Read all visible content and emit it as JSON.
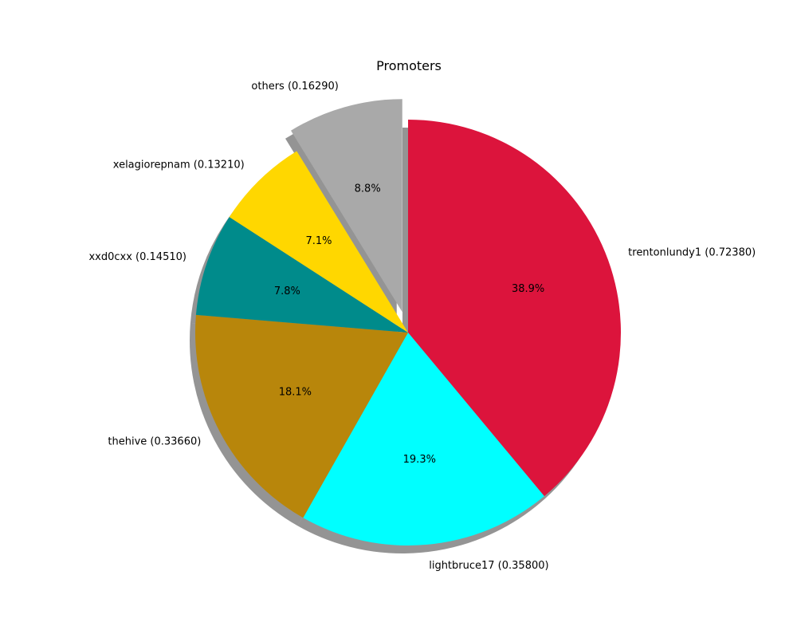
{
  "chart_data": {
    "type": "pie",
    "title": "Promoters",
    "start_angle_deg": 90,
    "direction": "clockwise",
    "shadow": true,
    "slices": [
      {
        "label": "trentonlundy1 (0.72380)",
        "value": 0.7238,
        "pct_label": "38.9%",
        "color": "#DC143C",
        "exploded": false
      },
      {
        "label": "lightbruce17 (0.35800)",
        "value": 0.358,
        "pct_label": "19.3%",
        "color": "#00FFFF",
        "exploded": false
      },
      {
        "label": "thehive (0.33660)",
        "value": 0.3366,
        "pct_label": "18.1%",
        "color": "#B8860B",
        "exploded": false
      },
      {
        "label": "xxd0cxx (0.14510)",
        "value": 0.1451,
        "pct_label": "7.8%",
        "color": "#008B8B",
        "exploded": false
      },
      {
        "label": "xelagiorepnam (0.13210)",
        "value": 0.1321,
        "pct_label": "7.1%",
        "color": "#FFD700",
        "exploded": false
      },
      {
        "label": "others (0.16290)",
        "value": 0.1629,
        "pct_label": "8.8%",
        "color": "#A9A9A9",
        "exploded": true
      }
    ]
  }
}
